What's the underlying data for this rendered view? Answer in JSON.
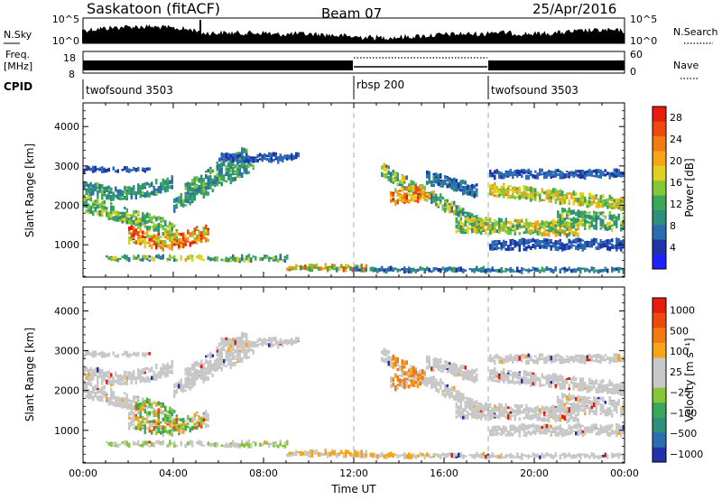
{
  "header": {
    "station": "Saskatoon (fitACF)",
    "beam": "Beam 07",
    "date": "25/Apr/2016"
  },
  "noise_panel": {
    "left_label": "N.Sky",
    "right_label": "N.Search",
    "left_ticks": [
      "10^5",
      "10^0"
    ],
    "right_ticks": [
      "10^5",
      "10^0"
    ]
  },
  "freq_panel": {
    "left_label_line1": "Freq.",
    "left_label_line2": "[MHz]",
    "left_ticks": [
      "18",
      "8"
    ],
    "right_label": "Nave",
    "right_ticks": [
      "60",
      "0"
    ]
  },
  "cpid": {
    "label": "CPID",
    "segments": [
      {
        "name": "twofsound 3503",
        "start_hour": 0,
        "end_hour": 12
      },
      {
        "name": "rbsp 200",
        "start_hour": 12,
        "end_hour": 18
      },
      {
        "name": "twofsound 3503",
        "start_hour": 18,
        "end_hour": 24
      }
    ]
  },
  "chart_data": [
    {
      "type": "heatmap",
      "title": "",
      "xlabel": "Time UT",
      "ylabel": "Slant Range [km]",
      "xlim": [
        0,
        24
      ],
      "ylim": [
        180,
        4600
      ],
      "x_ticks": [
        "00:00",
        "04:00",
        "08:00",
        "12:00",
        "16:00",
        "20:00",
        "00:00"
      ],
      "y_ticks": [
        1000,
        2000,
        3000,
        4000
      ],
      "colorbar": {
        "label": "Power [dB]",
        "ticks": [
          "4",
          "8",
          "12",
          "16",
          "20",
          "24",
          "28"
        ],
        "range": [
          0,
          30
        ],
        "colors": [
          "#1f1fff",
          "#2233aa",
          "#2c6cb0",
          "#2e8f7a",
          "#3aa85a",
          "#86c73a",
          "#e0d020",
          "#f5a516",
          "#f27a10",
          "#ee4a0c",
          "#e81c0c"
        ]
      }
    },
    {
      "type": "heatmap",
      "title": "",
      "xlabel": "Time UT",
      "ylabel": "Slant Range [km]",
      "xlim": [
        0,
        24
      ],
      "ylim": [
        180,
        4600
      ],
      "x_ticks": [
        "00:00",
        "04:00",
        "08:00",
        "12:00",
        "16:00",
        "20:00",
        "00:00"
      ],
      "y_ticks": [
        1000,
        2000,
        3000,
        4000
      ],
      "colorbar": {
        "label": "Velocity [m s⁻¹]",
        "ticks": [
          "1000",
          "500",
          "100",
          "25",
          "−25",
          "−100",
          "−500",
          "−1000"
        ],
        "range": [
          -1000,
          1000
        ],
        "colors": [
          "#2233aa",
          "#2c6cb0",
          "#2e8f7a",
          "#3aa85a",
          "#86c73a",
          "#c8c8c8",
          "#c8c8c8",
          "#f5a516",
          "#f27a10",
          "#ee4a0c",
          "#e81c0c"
        ]
      }
    }
  ]
}
